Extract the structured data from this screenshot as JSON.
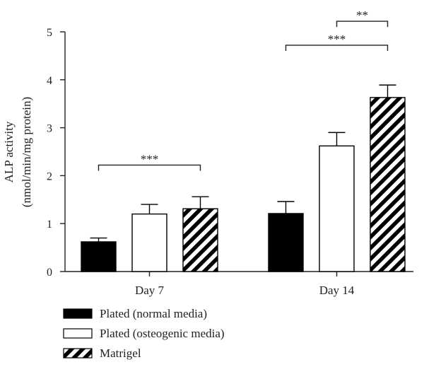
{
  "chart_data": {
    "type": "bar",
    "ylabel": [
      "ALP activity",
      "(nmol/min/mg protein)"
    ],
    "ylim": [
      0,
      5
    ],
    "yticks": [
      0,
      1,
      2,
      3,
      4,
      5
    ],
    "categories": [
      "Day 7",
      "Day 14"
    ],
    "series": [
      {
        "name": "Plated (normal media)",
        "style": "solid",
        "color": "#000000",
        "values": [
          0.62,
          1.21
        ],
        "errors": [
          0.08,
          0.25
        ]
      },
      {
        "name": "Plated (osteogenic media)",
        "style": "open",
        "color": "#ffffff",
        "values": [
          1.2,
          2.62
        ],
        "errors": [
          0.2,
          0.28
        ]
      },
      {
        "name": "Matrigel",
        "style": "hatched",
        "color": "#000000",
        "values": [
          1.31,
          3.63
        ],
        "errors": [
          0.25,
          0.26
        ]
      }
    ],
    "significance": [
      {
        "label": "***",
        "category": 0,
        "from_series": 0,
        "to_series": 2,
        "y": 2.22
      },
      {
        "label": "***",
        "category": 1,
        "from_series": 0,
        "to_series": 2,
        "y": 4.72
      },
      {
        "label": "**",
        "category": 1,
        "from_series": 1,
        "to_series": 2,
        "y": 5.22
      }
    ],
    "legend_position": "bottom-left"
  }
}
